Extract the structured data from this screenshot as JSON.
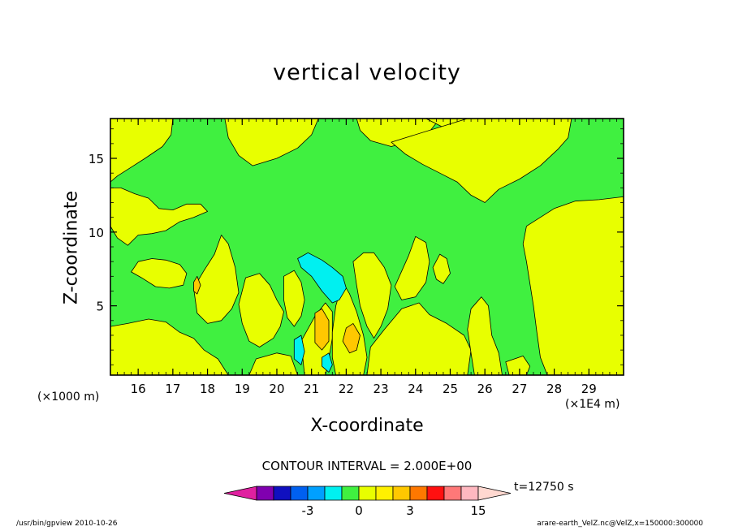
{
  "chart_data": {
    "type": "heatmap",
    "title": "vertical velocity",
    "xlabel": "X-coordinate",
    "ylabel": "Z-coordinate",
    "x_unit_left": "(×1000 m)",
    "x_unit_right": "(×1E4 m)",
    "x_ticks": [
      "16",
      "17",
      "18",
      "19",
      "20",
      "21",
      "22",
      "23",
      "24",
      "25",
      "26",
      "27",
      "28",
      "29"
    ],
    "y_ticks": [
      "5",
      "10",
      "15"
    ],
    "xlim": [
      15.2,
      30
    ],
    "ylim": [
      0.3,
      17.7
    ],
    "contour_interval": "CONTOUR INTERVAL = 2.000E+00",
    "time_label": "t=12750 s",
    "colorbar": {
      "labels": [
        {
          "text": "-3",
          "value": -3
        },
        {
          "text": "0",
          "value": 0
        },
        {
          "text": "3",
          "value": 3
        },
        {
          "text": "15",
          "value": 15
        }
      ],
      "segments": [
        {
          "lo": -9,
          "hi": -7,
          "color": "#e020a0"
        },
        {
          "lo": -7,
          "hi": -5,
          "color": "#8000b0"
        },
        {
          "lo": -5,
          "hi": -4,
          "color": "#1010c0"
        },
        {
          "lo": -4,
          "hi": -3,
          "color": "#0060f0"
        },
        {
          "lo": -3,
          "hi": -2,
          "color": "#00a0ff"
        },
        {
          "lo": -2,
          "hi": -1,
          "color": "#00f0f0"
        },
        {
          "lo": -1,
          "hi": 0,
          "color": "#40f040"
        },
        {
          "lo": 0,
          "hi": 1,
          "color": "#e8ff00"
        },
        {
          "lo": 1,
          "hi": 2,
          "color": "#fff000"
        },
        {
          "lo": 2,
          "hi": 3,
          "color": "#ffc800"
        },
        {
          "lo": 3,
          "hi": 6,
          "color": "#ff7800"
        },
        {
          "lo": 6,
          "hi": 9,
          "color": "#ff1010"
        },
        {
          "lo": 9,
          "hi": 12,
          "color": "#ff7878"
        },
        {
          "lo": 12,
          "hi": 15,
          "color": "#ffb8c0"
        },
        {
          "lo": 15,
          "hi": 18,
          "color": "#ffd8d0"
        }
      ]
    },
    "regions": [
      {
        "level": 0.5,
        "color": "#e8ff00",
        "points": [
          [
            15.2,
            17.7
          ],
          [
            17.0,
            17.7
          ],
          [
            16.95,
            16.6
          ],
          [
            16.7,
            15.8
          ],
          [
            16.2,
            15.0
          ],
          [
            15.8,
            14.4
          ],
          [
            15.4,
            13.8
          ],
          [
            15.2,
            13.4
          ]
        ]
      },
      {
        "level": 0.5,
        "color": "#e8ff00",
        "points": [
          [
            18.5,
            17.7
          ],
          [
            21.2,
            17.7
          ],
          [
            21.0,
            16.6
          ],
          [
            20.6,
            15.7
          ],
          [
            20.0,
            15.0
          ],
          [
            19.3,
            14.5
          ],
          [
            18.9,
            15.2
          ],
          [
            18.6,
            16.4
          ]
        ]
      },
      {
        "level": 0.5,
        "color": "#e8ff00",
        "points": [
          [
            22.3,
            17.7
          ],
          [
            24.7,
            17.7
          ],
          [
            24.4,
            16.8
          ],
          [
            23.9,
            16.2
          ],
          [
            23.3,
            15.8
          ],
          [
            22.7,
            16.2
          ],
          [
            22.4,
            16.9
          ]
        ]
      },
      {
        "level": 0.5,
        "color": "#e8ff00",
        "points": [
          [
            24.3,
            17.7
          ],
          [
            26.8,
            17.7
          ],
          [
            26.2,
            17.3
          ],
          [
            25.5,
            17.0
          ],
          [
            24.8,
            17.1
          ]
        ]
      },
      {
        "level": 0.5,
        "color": "#e8ff00",
        "points": [
          [
            25.5,
            17.7
          ],
          [
            28.5,
            17.7
          ],
          [
            28.4,
            16.4
          ],
          [
            28.1,
            15.6
          ],
          [
            27.6,
            14.5
          ],
          [
            27.0,
            13.6
          ],
          [
            26.4,
            12.9
          ],
          [
            26.0,
            12.0
          ],
          [
            25.6,
            12.5
          ],
          [
            25.2,
            13.4
          ],
          [
            24.7,
            14.0
          ],
          [
            24.2,
            14.6
          ],
          [
            23.7,
            15.3
          ],
          [
            23.3,
            16.1
          ]
        ]
      },
      {
        "level": 0.5,
        "color": "#e8ff00",
        "points": [
          [
            15.2,
            13.0
          ],
          [
            15.5,
            13.0
          ],
          [
            15.9,
            12.6
          ],
          [
            16.3,
            12.3
          ],
          [
            16.6,
            11.6
          ],
          [
            17.0,
            11.5
          ],
          [
            17.4,
            11.9
          ],
          [
            17.8,
            11.9
          ],
          [
            18.0,
            11.4
          ],
          [
            17.6,
            11.0
          ],
          [
            17.2,
            10.7
          ],
          [
            16.8,
            10.1
          ],
          [
            16.4,
            9.9
          ],
          [
            16.0,
            9.8
          ],
          [
            15.7,
            9.1
          ],
          [
            15.4,
            9.6
          ],
          [
            15.2,
            10.4
          ]
        ]
      },
      {
        "level": 0.5,
        "color": "#e8ff00",
        "points": [
          [
            27.2,
            10.4
          ],
          [
            27.6,
            11.0
          ],
          [
            28.0,
            11.6
          ],
          [
            28.6,
            12.1
          ],
          [
            29.3,
            12.2
          ],
          [
            30.0,
            12.4
          ],
          [
            30.0,
            0.3
          ],
          [
            27.8,
            0.3
          ],
          [
            27.6,
            1.5
          ],
          [
            27.5,
            3.2
          ],
          [
            27.4,
            5.0
          ],
          [
            27.3,
            6.5
          ],
          [
            27.2,
            8.0
          ],
          [
            27.1,
            9.2
          ]
        ]
      },
      {
        "level": 0.5,
        "color": "#e8ff00",
        "points": [
          [
            16.0,
            8.0
          ],
          [
            16.4,
            8.2
          ],
          [
            16.8,
            8.1
          ],
          [
            17.2,
            7.8
          ],
          [
            17.4,
            7.2
          ],
          [
            17.3,
            6.4
          ],
          [
            16.9,
            6.2
          ],
          [
            16.5,
            6.3
          ],
          [
            16.1,
            6.9
          ],
          [
            15.8,
            7.3
          ]
        ]
      },
      {
        "level": 0.5,
        "color": "#e8ff00",
        "points": [
          [
            17.6,
            6.2
          ],
          [
            17.9,
            7.4
          ],
          [
            18.2,
            8.5
          ],
          [
            18.4,
            9.8
          ],
          [
            18.6,
            9.2
          ],
          [
            18.8,
            7.6
          ],
          [
            18.9,
            5.9
          ],
          [
            18.7,
            4.8
          ],
          [
            18.4,
            4.0
          ],
          [
            18.0,
            3.8
          ],
          [
            17.7,
            4.5
          ]
        ]
      },
      {
        "level": 0.5,
        "color": "#e8ff00",
        "points": [
          [
            15.2,
            3.6
          ],
          [
            15.7,
            3.8
          ],
          [
            16.3,
            4.1
          ],
          [
            16.8,
            3.9
          ],
          [
            17.2,
            3.2
          ],
          [
            17.6,
            2.8
          ],
          [
            17.9,
            2.0
          ],
          [
            18.3,
            1.4
          ],
          [
            18.6,
            0.3
          ],
          [
            15.2,
            0.3
          ]
        ]
      },
      {
        "level": 0.5,
        "color": "#e8ff00",
        "points": [
          [
            19.1,
            6.9
          ],
          [
            19.5,
            7.2
          ],
          [
            19.8,
            6.4
          ],
          [
            20.0,
            5.4
          ],
          [
            20.2,
            4.6
          ],
          [
            20.1,
            3.6
          ],
          [
            19.9,
            2.8
          ],
          [
            19.5,
            2.2
          ],
          [
            19.2,
            2.6
          ],
          [
            19.0,
            3.8
          ],
          [
            18.9,
            5.1
          ]
        ]
      },
      {
        "level": 0.5,
        "color": "#e8ff00",
        "points": [
          [
            19.4,
            1.4
          ],
          [
            20.0,
            1.8
          ],
          [
            20.4,
            1.6
          ],
          [
            20.6,
            0.3
          ],
          [
            19.2,
            0.3
          ]
        ]
      },
      {
        "level": 0.5,
        "color": "#e8ff00",
        "points": [
          [
            20.2,
            7.0
          ],
          [
            20.5,
            7.4
          ],
          [
            20.7,
            6.6
          ],
          [
            20.8,
            5.4
          ],
          [
            20.7,
            4.3
          ],
          [
            20.5,
            3.6
          ],
          [
            20.3,
            4.2
          ],
          [
            20.2,
            5.4
          ]
        ]
      },
      {
        "level": 0.5,
        "color": "#e8ff00",
        "points": [
          [
            20.7,
            2.6
          ],
          [
            21.1,
            4.3
          ],
          [
            21.4,
            5.2
          ],
          [
            21.6,
            4.6
          ],
          [
            21.6,
            2.8
          ],
          [
            21.5,
            1.4
          ],
          [
            21.4,
            0.3
          ],
          [
            20.8,
            0.3
          ]
        ]
      },
      {
        "level": 0.5,
        "color": "#e8ff00",
        "points": [
          [
            21.9,
            6.6
          ],
          [
            22.1,
            5.8
          ],
          [
            22.3,
            4.6
          ],
          [
            22.5,
            3.0
          ],
          [
            22.6,
            1.5
          ],
          [
            22.5,
            0.3
          ],
          [
            21.7,
            0.3
          ],
          [
            21.6,
            1.5
          ],
          [
            21.6,
            3.2
          ],
          [
            21.7,
            5.0
          ]
        ]
      },
      {
        "level": 0.5,
        "color": "#e8ff00",
        "points": [
          [
            22.2,
            8.0
          ],
          [
            22.5,
            8.6
          ],
          [
            22.8,
            8.6
          ],
          [
            23.1,
            7.6
          ],
          [
            23.3,
            6.4
          ],
          [
            23.2,
            4.8
          ],
          [
            23.0,
            3.6
          ],
          [
            22.8,
            2.8
          ],
          [
            22.6,
            3.6
          ],
          [
            22.4,
            5.0
          ],
          [
            22.3,
            6.4
          ]
        ]
      },
      {
        "level": 0.5,
        "color": "#e8ff00",
        "points": [
          [
            22.7,
            2.2
          ],
          [
            23.1,
            3.4
          ],
          [
            23.6,
            4.8
          ],
          [
            24.1,
            5.2
          ],
          [
            24.4,
            4.4
          ],
          [
            24.9,
            3.8
          ],
          [
            25.4,
            3.0
          ],
          [
            25.6,
            2.0
          ],
          [
            25.5,
            0.3
          ],
          [
            22.6,
            0.3
          ]
        ]
      },
      {
        "level": 0.5,
        "color": "#e8ff00",
        "points": [
          [
            23.4,
            6.3
          ],
          [
            23.8,
            8.4
          ],
          [
            24.0,
            9.7
          ],
          [
            24.3,
            9.3
          ],
          [
            24.4,
            8.0
          ],
          [
            24.3,
            6.6
          ],
          [
            24.0,
            5.6
          ],
          [
            23.6,
            5.4
          ]
        ]
      },
      {
        "level": 0.5,
        "color": "#e8ff00",
        "points": [
          [
            24.5,
            7.6
          ],
          [
            24.7,
            8.5
          ],
          [
            24.9,
            8.2
          ],
          [
            25.0,
            7.2
          ],
          [
            24.8,
            6.5
          ],
          [
            24.6,
            6.8
          ]
        ]
      },
      {
        "level": 0.5,
        "color": "#e8ff00",
        "points": [
          [
            25.6,
            4.8
          ],
          [
            25.9,
            5.6
          ],
          [
            26.1,
            5.0
          ],
          [
            26.2,
            3.0
          ],
          [
            26.4,
            1.8
          ],
          [
            26.5,
            0.3
          ],
          [
            25.7,
            0.3
          ],
          [
            25.6,
            1.8
          ],
          [
            25.5,
            3.4
          ]
        ]
      },
      {
        "level": 0.5,
        "color": "#e8ff00",
        "points": [
          [
            26.6,
            1.2
          ],
          [
            27.1,
            1.6
          ],
          [
            27.3,
            0.9
          ],
          [
            27.2,
            0.3
          ],
          [
            26.7,
            0.3
          ]
        ]
      },
      {
        "level": -0.5,
        "color": "#00f0f0",
        "points": [
          [
            20.6,
            8.2
          ],
          [
            20.9,
            8.6
          ],
          [
            21.3,
            8.1
          ],
          [
            21.6,
            7.6
          ],
          [
            21.9,
            7.0
          ],
          [
            22.0,
            6.2
          ],
          [
            21.8,
            5.4
          ],
          [
            21.6,
            5.2
          ],
          [
            21.3,
            6.0
          ],
          [
            21.0,
            7.0
          ],
          [
            20.7,
            7.6
          ]
        ]
      },
      {
        "level": -0.5,
        "color": "#00f0f0",
        "points": [
          [
            20.5,
            2.7
          ],
          [
            20.7,
            3.0
          ],
          [
            20.8,
            1.9
          ],
          [
            20.7,
            1.0
          ],
          [
            20.5,
            1.4
          ]
        ]
      },
      {
        "level": -0.5,
        "color": "#00f0f0",
        "points": [
          [
            21.3,
            1.5
          ],
          [
            21.5,
            1.8
          ],
          [
            21.6,
            1.0
          ],
          [
            21.5,
            0.5
          ],
          [
            21.3,
            0.9
          ]
        ]
      },
      {
        "level": 2.5,
        "color": "#ffc800",
        "points": [
          [
            21.1,
            4.5
          ],
          [
            21.3,
            4.8
          ],
          [
            21.5,
            4.0
          ],
          [
            21.5,
            2.6
          ],
          [
            21.3,
            2.0
          ],
          [
            21.1,
            2.5
          ],
          [
            21.1,
            3.6
          ]
        ]
      },
      {
        "level": 2.5,
        "color": "#ffc800",
        "points": [
          [
            22.0,
            3.5
          ],
          [
            22.2,
            3.8
          ],
          [
            22.4,
            3.0
          ],
          [
            22.3,
            2.0
          ],
          [
            22.1,
            1.8
          ],
          [
            21.9,
            2.6
          ]
        ]
      },
      {
        "level": 2.5,
        "color": "#ffc800",
        "points": [
          [
            17.6,
            6.6
          ],
          [
            17.7,
            7.0
          ],
          [
            17.8,
            6.4
          ],
          [
            17.7,
            5.8
          ],
          [
            17.6,
            6.0
          ]
        ]
      }
    ]
  },
  "footer_left": "/usr/bin/gpview   2010-10-26",
  "footer_right": "arare-earth_VelZ.nc@VelZ,x=150000:300000"
}
